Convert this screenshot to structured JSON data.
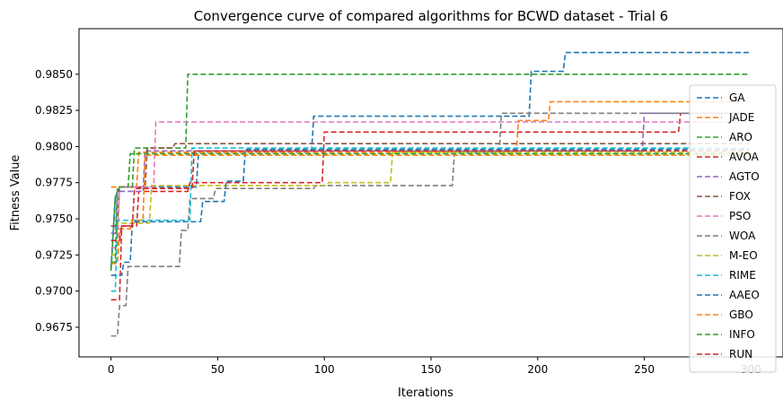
{
  "chart_data": {
    "type": "line",
    "title": "Convergence curve of compared algorithms for BCWD dataset - Trial 6",
    "xlabel": "Iterations",
    "ylabel": "Fitness Value",
    "xlim": [
      -15,
      315
    ],
    "ylim": [
      0.96545,
      0.98815
    ],
    "xticks": [
      0,
      50,
      100,
      150,
      200,
      250,
      300
    ],
    "xtick_labels": [
      "0",
      "50",
      "100",
      "150",
      "200",
      "250",
      "300"
    ],
    "yticks": [
      0.9675,
      0.97,
      0.9725,
      0.975,
      0.9775,
      0.98,
      0.9825,
      0.985
    ],
    "ytick_labels": [
      "0.9675",
      "0.9700",
      "0.9725",
      "0.9750",
      "0.9775",
      "0.9800",
      "0.9825",
      "0.9850"
    ],
    "grid": false,
    "legend_position": "right",
    "line_style": "dashed",
    "series": [
      {
        "name": "GA",
        "color": "#1f77b4",
        "points": [
          [
            0,
            0.9716
          ],
          [
            2,
            0.9765
          ],
          [
            4,
            0.9772
          ],
          [
            40,
            0.9772
          ],
          [
            41,
            0.9796
          ],
          [
            94,
            0.9796
          ],
          [
            95,
            0.9821
          ],
          [
            196,
            0.9821
          ],
          [
            197,
            0.9852
          ],
          [
            212,
            0.9852
          ],
          [
            213,
            0.9865
          ],
          [
            299,
            0.9865
          ]
        ]
      },
      {
        "name": "JADE",
        "color": "#ff7f0e",
        "points": [
          [
            0,
            0.9772
          ],
          [
            12,
            0.9772
          ],
          [
            13,
            0.9796
          ],
          [
            190,
            0.9796
          ],
          [
            191,
            0.9818
          ],
          [
            205,
            0.9818
          ],
          [
            206,
            0.9831
          ],
          [
            299,
            0.9831
          ]
        ]
      },
      {
        "name": "ARO",
        "color": "#2ca02c",
        "points": [
          [
            0,
            0.9714
          ],
          [
            2,
            0.9765
          ],
          [
            4,
            0.9772
          ],
          [
            10,
            0.9772
          ],
          [
            11,
            0.9799
          ],
          [
            35,
            0.9799
          ],
          [
            36,
            0.985
          ],
          [
            299,
            0.985
          ]
        ]
      },
      {
        "name": "AVOA",
        "color": "#d62728",
        "points": [
          [
            0,
            0.9694
          ],
          [
            4,
            0.9694
          ],
          [
            5,
            0.9745
          ],
          [
            12,
            0.9745
          ],
          [
            13,
            0.9769
          ],
          [
            36,
            0.9769
          ],
          [
            37,
            0.9775
          ],
          [
            99,
            0.9775
          ],
          [
            100,
            0.981
          ],
          [
            266,
            0.981
          ],
          [
            267,
            0.9823
          ],
          [
            299,
            0.9823
          ]
        ]
      },
      {
        "name": "AGTO",
        "color": "#9467bd",
        "points": [
          [
            0,
            0.974
          ],
          [
            2,
            0.974
          ],
          [
            3,
            0.9769
          ],
          [
            15,
            0.9769
          ],
          [
            16,
            0.9797
          ],
          [
            249,
            0.9797
          ],
          [
            250,
            0.9823
          ],
          [
            299,
            0.9823
          ]
        ]
      },
      {
        "name": "FOX",
        "color": "#8c564b",
        "points": [
          [
            0,
            0.9745
          ],
          [
            3,
            0.9745
          ],
          [
            4,
            0.9772
          ],
          [
            16,
            0.9772
          ],
          [
            17,
            0.9799
          ],
          [
            29,
            0.9799
          ],
          [
            30,
            0.9802
          ],
          [
            299,
            0.9802
          ]
        ]
      },
      {
        "name": "PSO",
        "color": "#e377c2",
        "points": [
          [
            0,
            0.973
          ],
          [
            3,
            0.973
          ],
          [
            4,
            0.9772
          ],
          [
            20,
            0.9772
          ],
          [
            21,
            0.9817
          ],
          [
            299,
            0.9817
          ]
        ]
      },
      {
        "name": "WOA",
        "color": "#7f7f7f",
        "points": [
          [
            0,
            0.9669
          ],
          [
            3,
            0.9669
          ],
          [
            4,
            0.969
          ],
          [
            7,
            0.969
          ],
          [
            8,
            0.9717
          ],
          [
            32,
            0.9717
          ],
          [
            33,
            0.9742
          ],
          [
            36,
            0.9742
          ],
          [
            37,
            0.9764
          ],
          [
            48,
            0.9764
          ],
          [
            49,
            0.9771
          ],
          [
            95,
            0.9771
          ],
          [
            96,
            0.9773
          ],
          [
            160,
            0.9773
          ],
          [
            161,
            0.9796
          ],
          [
            182,
            0.9796
          ],
          [
            183,
            0.9823
          ],
          [
            299,
            0.9823
          ]
        ]
      },
      {
        "name": "M-EO",
        "color": "#bcbd22",
        "points": [
          [
            0,
            0.9725
          ],
          [
            2,
            0.9725
          ],
          [
            3,
            0.9747
          ],
          [
            18,
            0.9747
          ],
          [
            19,
            0.9773
          ],
          [
            101,
            0.9773
          ],
          [
            102,
            0.9775
          ],
          [
            131,
            0.9775
          ],
          [
            132,
            0.9796
          ],
          [
            299,
            0.9796
          ]
        ]
      },
      {
        "name": "RIME",
        "color": "#17becf",
        "points": [
          [
            0,
            0.97
          ],
          [
            2,
            0.97
          ],
          [
            3,
            0.9749
          ],
          [
            37,
            0.9749
          ],
          [
            38,
            0.9799
          ],
          [
            299,
            0.9799
          ]
        ]
      },
      {
        "name": "AAEO",
        "color": "#1f77b4",
        "points": [
          [
            0,
            0.9711
          ],
          [
            5,
            0.9711
          ],
          [
            6,
            0.972
          ],
          [
            9,
            0.972
          ],
          [
            10,
            0.9748
          ],
          [
            42,
            0.9748
          ],
          [
            43,
            0.9762
          ],
          [
            53,
            0.9762
          ],
          [
            54,
            0.9776
          ],
          [
            62,
            0.9776
          ],
          [
            63,
            0.9798
          ],
          [
            299,
            0.9798
          ]
        ]
      },
      {
        "name": "GBO",
        "color": "#ff7f0e",
        "points": [
          [
            0,
            0.9719
          ],
          [
            3,
            0.9719
          ],
          [
            4,
            0.9743
          ],
          [
            9,
            0.9743
          ],
          [
            10,
            0.9749
          ],
          [
            15,
            0.9749
          ],
          [
            16,
            0.9794
          ],
          [
            299,
            0.9794
          ]
        ]
      },
      {
        "name": "INFO",
        "color": "#2ca02c",
        "points": [
          [
            0,
            0.972
          ],
          [
            2,
            0.972
          ],
          [
            3,
            0.9772
          ],
          [
            8,
            0.9772
          ],
          [
            9,
            0.9795
          ],
          [
            299,
            0.9795
          ]
        ]
      },
      {
        "name": "RUN",
        "color": "#d62728",
        "points": [
          [
            0,
            0.9735
          ],
          [
            4,
            0.9735
          ],
          [
            5,
            0.9745
          ],
          [
            10,
            0.9745
          ],
          [
            11,
            0.9771
          ],
          [
            38,
            0.9771
          ],
          [
            39,
            0.9797
          ],
          [
            299,
            0.9797
          ]
        ]
      }
    ]
  }
}
